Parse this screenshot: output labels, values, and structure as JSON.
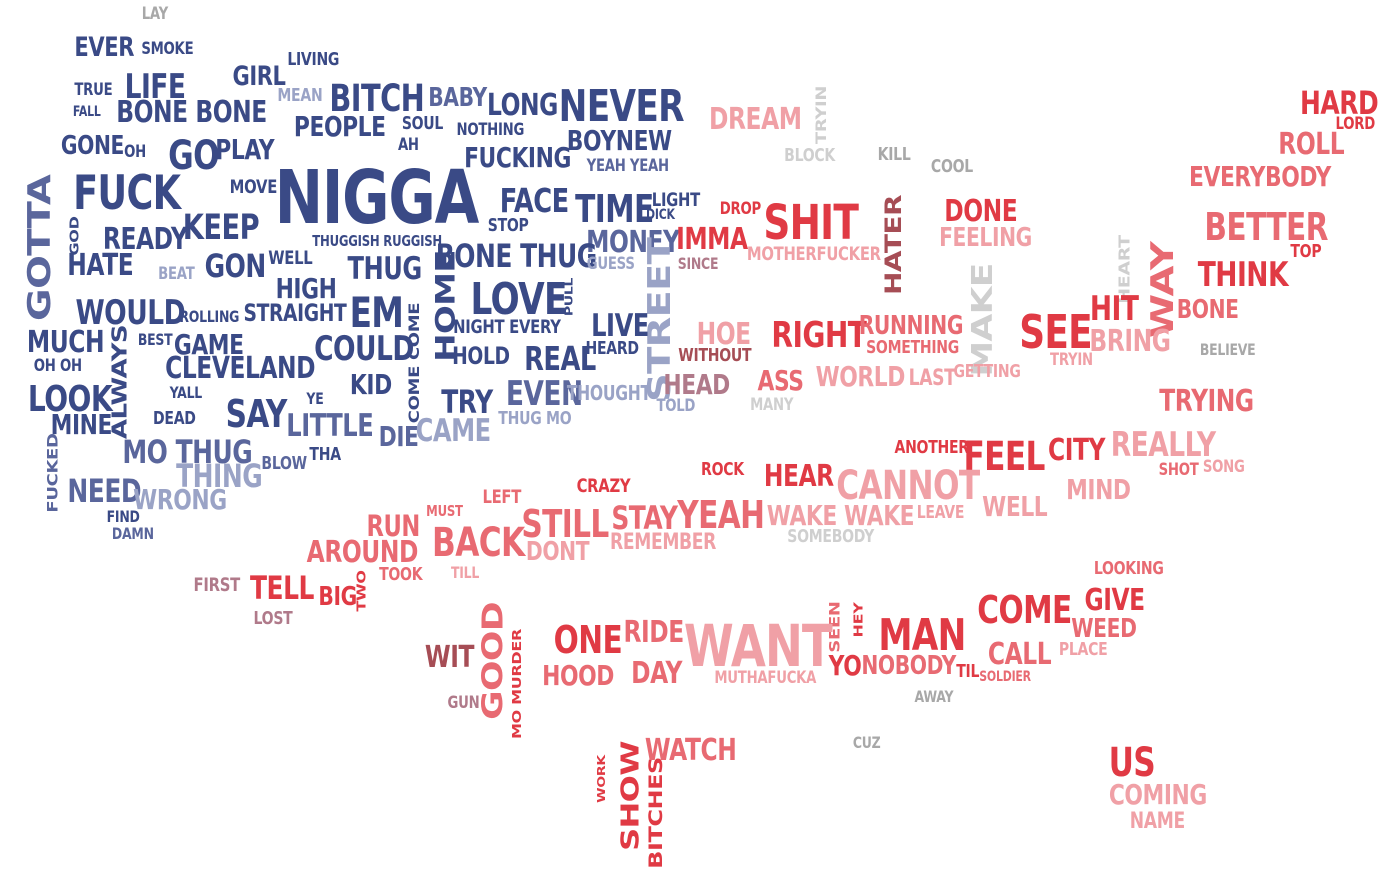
{
  "palette": {
    "navy": "#3a4a86",
    "navy_mid": "#5a669c",
    "navy_light": "#9aa3c6",
    "red": "#e03a44",
    "red_mid": "#e86a72",
    "pink": "#f0a0a6",
    "grey": "#a8a8a8",
    "light_grey": "#cfcfcf",
    "maroon": "#a64d55",
    "mauve": "#b07a8a"
  },
  "words": [
    "LAY",
    "EVER",
    "SMOKE",
    "TRUE",
    "LIFE",
    "GIRL",
    "LIVING",
    "MEAN",
    "BITCH",
    "BABY",
    "LONG",
    "NEVER",
    "FALL",
    "BONE BONE",
    "PEOPLE",
    "SOUL",
    "NOTHING",
    "BOYNEW",
    "GONE",
    "OH",
    "GO",
    "PLAY",
    "AH",
    "FUCKING",
    "YEAH YEAH",
    "DREAM",
    "TRYIN",
    "BLOCK",
    "KILL",
    "COOL",
    "HARD",
    "LORD",
    "ROLL",
    "EVERYBODY",
    "FUCK",
    "MOVE",
    "NIGGA",
    "FACE",
    "TIME",
    "LIGHT",
    "DICK",
    "DROP",
    "SHIT",
    "DONE",
    "GOTTA",
    "GOD",
    "READY",
    "KEEP",
    "STOP",
    "THUGGISH RUGGISH",
    "MONEY",
    "IMMA",
    "HATER",
    "FEELING",
    "BETTER",
    "TOP",
    "HATE",
    "BEAT",
    "GON",
    "WELL",
    "THUG",
    "BONE THUG",
    "GUESS",
    "SINCE",
    "MOTHERFUCKER",
    "HEART",
    "WAY",
    "THINK",
    "HIGH",
    "STRAIGHT",
    "LOVE",
    "PULL",
    "STREET",
    "HIT",
    "BONE",
    "WOULD",
    "ROLLING",
    "EM",
    "HOME",
    "NIGHT EVERY",
    "LIVE",
    "HOE",
    "RIGHT",
    "RUNNING",
    "MAKE",
    "SEE",
    "BRING",
    "MUCH",
    "BEST",
    "GAME",
    "COULD",
    "COME COME",
    "REAL",
    "HEARD",
    "WITHOUT",
    "SOMETHING",
    "BELIEVE",
    "OH OH",
    "ALWAYS",
    "CLEVELAND",
    "HOLD",
    "TRYIN",
    "KID",
    "YALL",
    "HEAD",
    "ASS",
    "WORLD",
    "LAST",
    "GETTING",
    "LOOK",
    "YE",
    "TRY",
    "EVEN",
    "THOUGHT",
    "TOLD",
    "MANY",
    "TRYING",
    "MINE",
    "DEAD",
    "SAY",
    "LITTLE",
    "DIE",
    "CAME",
    "THUG MO",
    "ANOTHER",
    "FEEL",
    "CITY",
    "REALLY",
    "MO THUG",
    "THING",
    "BLOW",
    "THA",
    "ROCK",
    "HEAR",
    "CANNOT",
    "SHOT",
    "SONG",
    "FUCKED",
    "NEED",
    "WRONG",
    "CRAZY",
    "LEFT",
    "MIND",
    "FIND",
    "DAMN",
    "MUST",
    "RUN",
    "STILL",
    "STAY",
    "YEAH",
    "WAKE WAKE",
    "LEAVE",
    "WELL",
    "AROUND",
    "BACK",
    "DONT",
    "REMEMBER",
    "SOMEBODY",
    "FIRST",
    "TELL",
    "BIG",
    "TWO",
    "TOOK",
    "TILL",
    "LOOKING",
    "LOST",
    "GIVE",
    "COME",
    "WEED",
    "SEEN",
    "HEY",
    "ONE",
    "RIDE",
    "WANT",
    "MAN",
    "CALL",
    "PLACE",
    "WIT",
    "GOOD",
    "MO MURDER",
    "HOOD",
    "DAY",
    "MUTHAFUCKA",
    "YO",
    "NOBODY",
    "TIL",
    "SOLDIER",
    "GUN",
    "AWAY",
    "CUZ",
    "WORK",
    "SHOW",
    "BITCHES",
    "WATCH",
    "US",
    "COMING",
    "NAME"
  ]
}
